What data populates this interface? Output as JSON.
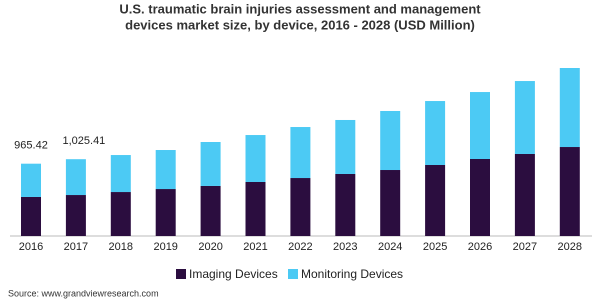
{
  "chart_data": {
    "type": "stacked-bar",
    "title": "U.S. traumatic brain injuries assessment and management",
    "subtitle": "devices market size, by device, 2016 - 2028 (USD Million)",
    "categories": [
      "2016",
      "2017",
      "2018",
      "2019",
      "2020",
      "2021",
      "2022",
      "2023",
      "2024",
      "2025",
      "2026",
      "2027",
      "2028"
    ],
    "series": [
      {
        "name": "Imaging Devices",
        "color": "#2b0d3f",
        "values": [
          521,
          547,
          587,
          627,
          668,
          721,
          774,
          828,
          881,
          948,
          1028,
          1095,
          1188
        ]
      },
      {
        "name": "Monitoring Devices",
        "color": "#4ccaf4",
        "values": [
          444.42,
          478.41,
          494,
          521,
          587,
          627,
          681,
          721,
          788,
          854,
          894,
          974,
          1055
        ]
      }
    ],
    "totals": {
      "values": [
        965.42,
        1025.41
      ],
      "value_labels": [
        "965.42",
        "1,025.41"
      ]
    },
    "source": "Source: www.grandviewresearch.com"
  }
}
